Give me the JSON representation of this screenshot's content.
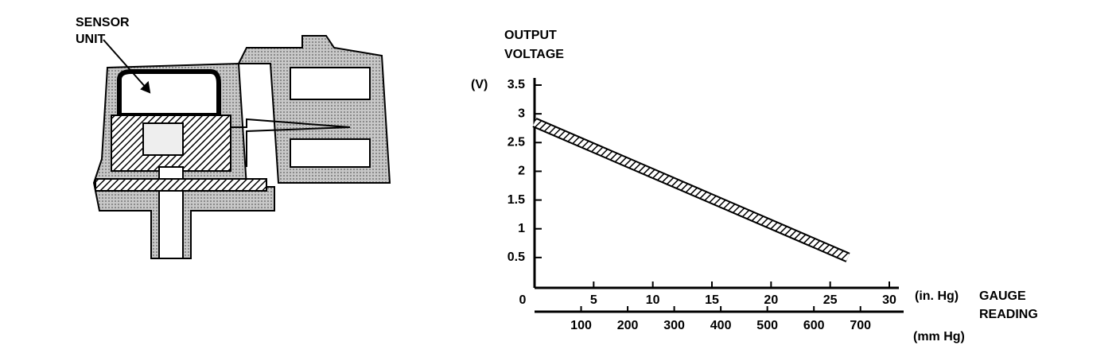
{
  "diagram": {
    "label": [
      "SENSOR",
      "UNIT"
    ]
  },
  "chart_data": {
    "type": "line",
    "y_label": [
      "OUTPUT",
      "VOLTAGE"
    ],
    "y_unit": "(V)",
    "x_label": [
      "GAUGE",
      "READING"
    ],
    "x_unit": "(in. Hg)",
    "x2_unit": "(mm Hg)",
    "x": [
      0,
      26.5
    ],
    "values": [
      2.85,
      0.5
    ],
    "color": "#000000",
    "xlim": [
      0,
      30
    ],
    "xticks": [
      0,
      5,
      10,
      15,
      20,
      25,
      30
    ],
    "x2lim": [
      0,
      762
    ],
    "x2ticks": [
      100,
      200,
      300,
      400,
      500,
      600,
      700
    ],
    "ylim": [
      0,
      3.5
    ],
    "yticks": [
      0.5,
      1.0,
      1.5,
      2.0,
      2.5,
      3.0,
      3.5
    ]
  }
}
